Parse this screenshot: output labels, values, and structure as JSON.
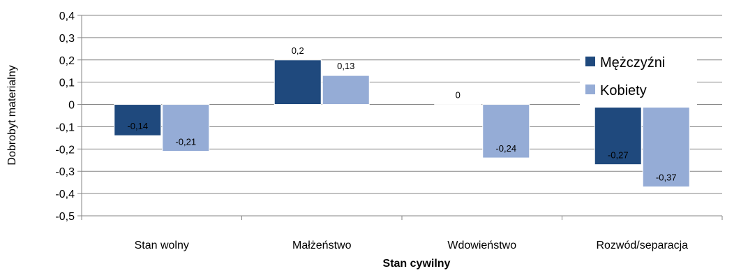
{
  "chart_data": {
    "type": "bar",
    "categories": [
      "Stan wolny",
      "Małżeństwo",
      "Wdowieństwo",
      "Rozwód/separacja"
    ],
    "series": [
      {
        "name": "Mężczyźni",
        "values": [
          -0.14,
          0.2,
          0,
          -0.27
        ],
        "labels": [
          "-0,14",
          "0,2",
          "0",
          "-0,27"
        ],
        "color": "#1f497d"
      },
      {
        "name": "Kobiety",
        "values": [
          -0.21,
          0.13,
          -0.24,
          -0.37
        ],
        "labels": [
          "-0,21",
          "0,13",
          "-0,24",
          "-0,37"
        ],
        "color": "#95acd6"
      }
    ],
    "xlabel": "Stan cywilny",
    "ylabel": "Dobrobyt materialny",
    "ylim": [
      -0.5,
      0.4
    ],
    "yticks": [
      0.4,
      0.3,
      0.2,
      0.1,
      0,
      -0.1,
      -0.2,
      -0.3,
      -0.4,
      -0.5
    ],
    "ytick_labels": [
      "0,4",
      "0,3",
      "0,2",
      "0,1",
      "0",
      "-0,1",
      "-0,2",
      "-0,3",
      "-0,4",
      "-0,5"
    ],
    "grid": true,
    "legend": "right"
  }
}
